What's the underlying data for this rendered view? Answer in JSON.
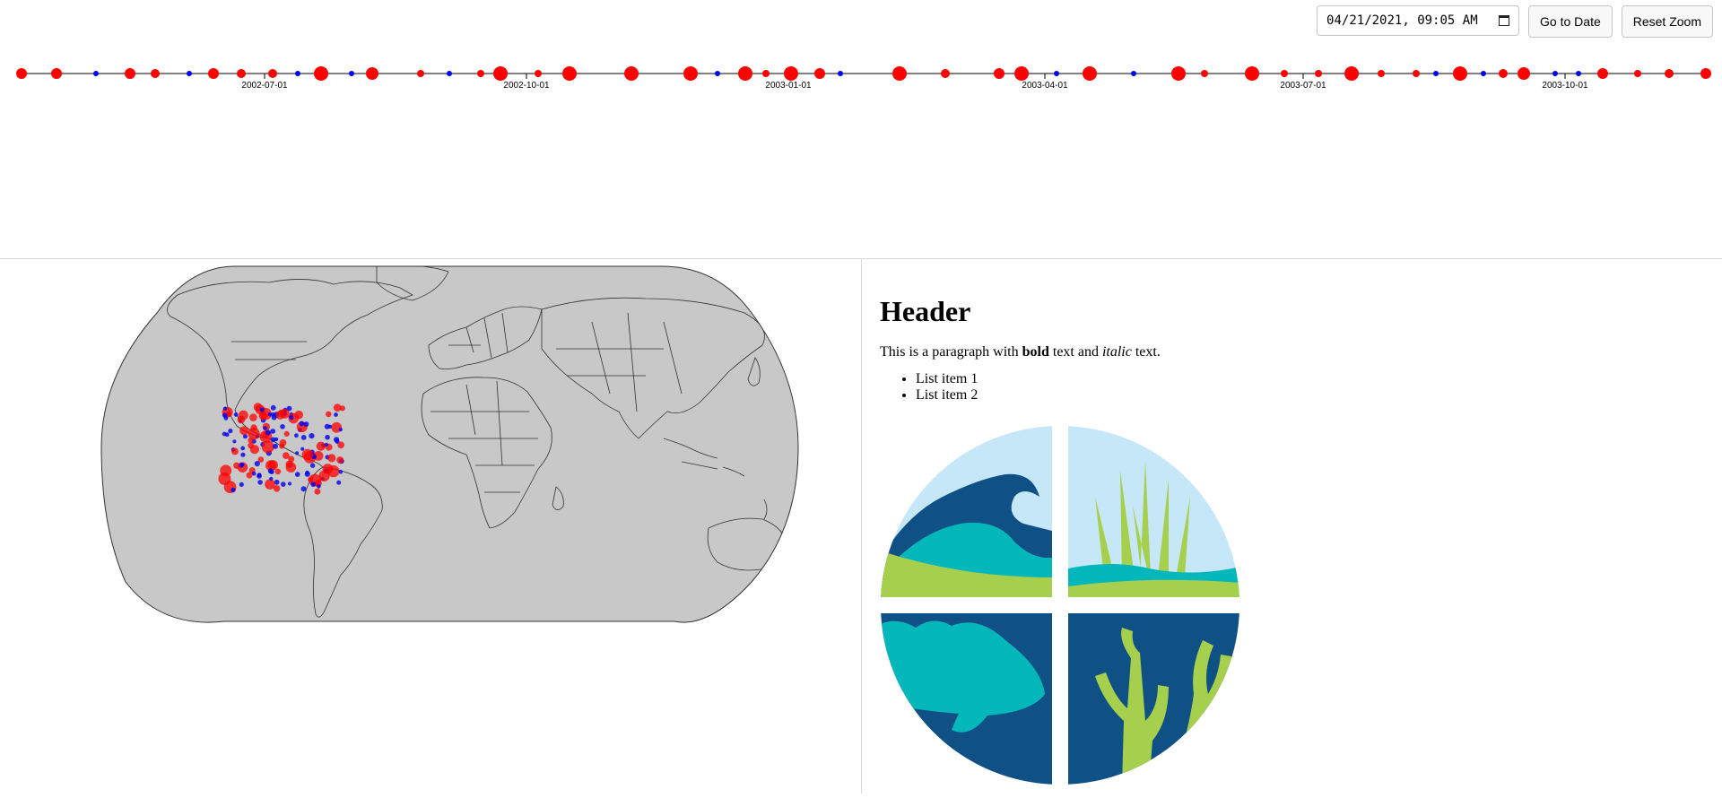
{
  "controls": {
    "date_value": "04/21/2021, 09:05 AM",
    "goto_label": "Go to Date",
    "reset_label": "Reset Zoom"
  },
  "timeline": {
    "axis_labels": [
      "2002-07-01",
      "2002-10-01",
      "2003-01-01",
      "2003-04-01",
      "2003-07-01",
      "2003-10-01"
    ],
    "colors": {
      "large_event": "#ff0000",
      "small_event": "#0000ff",
      "axis": "#000000"
    }
  },
  "map": {
    "land_color": "#c8c8c8",
    "border_color": "#333333",
    "marker_colors": {
      "red": "#ff0000",
      "blue": "#0000ee"
    }
  },
  "document": {
    "heading": "Header",
    "paragraph": {
      "before_bold": "This is a paragraph with ",
      "bold": "bold",
      "between": " text and ",
      "italic": "italic",
      "after": " text."
    },
    "list_items": [
      "List item 1",
      "List item 2"
    ],
    "logo": {
      "icon": "ocean-ecosystem-logo",
      "colors": {
        "sky": "#c5e7f8",
        "navy": "#0f5185",
        "teal": "#04b7bb",
        "green": "#a6cf4e"
      }
    }
  }
}
